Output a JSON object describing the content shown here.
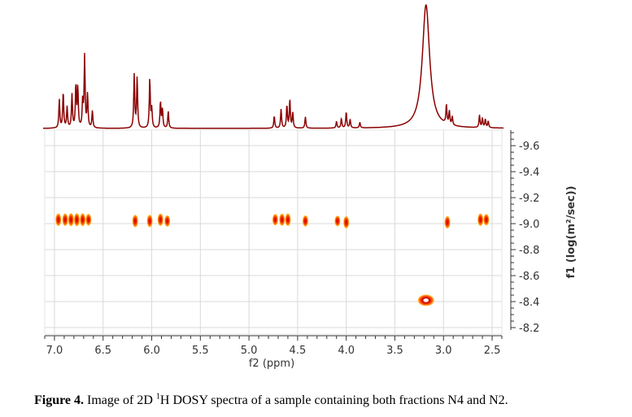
{
  "chart_data": {
    "type": "heatmap",
    "subtype": "2D DOSY NMR spectrum with 1D projection",
    "xlabel": "f2 (ppm)",
    "ylabel": "f1 (log(m²/sec))",
    "xlim": [
      7.1,
      2.4
    ],
    "ylim": [
      -8.15,
      -9.72
    ],
    "x_ticks": [
      "7.0",
      "6.5",
      "6.0",
      "5.5",
      "5.0",
      "4.5",
      "4.0",
      "3.5",
      "3.0",
      "2.5"
    ],
    "x_tick_values": [
      7.0,
      6.5,
      6.0,
      5.5,
      5.0,
      4.5,
      4.0,
      3.5,
      3.0,
      2.5
    ],
    "y_ticks": [
      "-9.6",
      "-9.4",
      "-9.2",
      "-9.0",
      "-8.8",
      "-8.6",
      "-8.4",
      "-8.2"
    ],
    "y_tick_values": [
      -9.6,
      -9.4,
      -9.2,
      -9.0,
      -8.8,
      -8.6,
      -8.4,
      -8.2
    ],
    "grid": true,
    "colors": {
      "projection": "#8b0000",
      "peak_outer": "#ffd24a",
      "peak_mid": "#ff6a00",
      "peak_core": "#cc0000",
      "peak_center": "#ffffff",
      "grid": "#d9d9d9"
    },
    "projection_peaks": [
      {
        "x": 6.95,
        "h": 0.3
      },
      {
        "x": 6.91,
        "h": 0.38
      },
      {
        "x": 6.87,
        "h": 0.22
      },
      {
        "x": 6.82,
        "h": 0.35
      },
      {
        "x": 6.78,
        "h": 0.45
      },
      {
        "x": 6.76,
        "h": 0.42
      },
      {
        "x": 6.71,
        "h": 0.28
      },
      {
        "x": 6.69,
        "h": 0.75
      },
      {
        "x": 6.66,
        "h": 0.35
      },
      {
        "x": 6.61,
        "h": 0.18
      },
      {
        "x": 6.18,
        "h": 0.56
      },
      {
        "x": 6.15,
        "h": 0.53
      },
      {
        "x": 6.02,
        "h": 0.52
      },
      {
        "x": 6.0,
        "h": 0.2
      },
      {
        "x": 5.91,
        "h": 0.28
      },
      {
        "x": 5.89,
        "h": 0.2
      },
      {
        "x": 5.83,
        "h": 0.18
      },
      {
        "x": 4.74,
        "h": 0.13
      },
      {
        "x": 4.67,
        "h": 0.2
      },
      {
        "x": 4.61,
        "h": 0.24
      },
      {
        "x": 4.58,
        "h": 0.3
      },
      {
        "x": 4.55,
        "h": 0.16
      },
      {
        "x": 4.42,
        "h": 0.12
      },
      {
        "x": 4.1,
        "h": 0.07
      },
      {
        "x": 4.05,
        "h": 0.1
      },
      {
        "x": 4.0,
        "h": 0.17
      },
      {
        "x": 3.96,
        "h": 0.09
      },
      {
        "x": 3.86,
        "h": 0.06
      },
      {
        "x": 3.18,
        "h": 1.3,
        "w": 0.045
      },
      {
        "x": 2.97,
        "h": 0.2
      },
      {
        "x": 2.94,
        "h": 0.14
      },
      {
        "x": 2.91,
        "h": 0.09
      },
      {
        "x": 2.63,
        "h": 0.13
      },
      {
        "x": 2.6,
        "h": 0.1
      },
      {
        "x": 2.57,
        "h": 0.09
      },
      {
        "x": 2.54,
        "h": 0.07
      }
    ],
    "dosy_peaks": [
      {
        "x": 6.96,
        "y": -9.03,
        "w": 0.03,
        "int": 0.9
      },
      {
        "x": 6.89,
        "y": -9.03,
        "w": 0.03,
        "int": 0.9
      },
      {
        "x": 6.83,
        "y": -9.03,
        "w": 0.03,
        "int": 1.0
      },
      {
        "x": 6.77,
        "y": -9.03,
        "w": 0.03,
        "int": 1.0
      },
      {
        "x": 6.71,
        "y": -9.03,
        "w": 0.03,
        "int": 1.0
      },
      {
        "x": 6.65,
        "y": -9.03,
        "w": 0.02,
        "int": 0.7
      },
      {
        "x": 6.17,
        "y": -9.02,
        "w": 0.03,
        "int": 0.85
      },
      {
        "x": 6.02,
        "y": -9.02,
        "w": 0.03,
        "int": 0.85
      },
      {
        "x": 5.91,
        "y": -9.03,
        "w": 0.03,
        "int": 0.85
      },
      {
        "x": 5.84,
        "y": -9.02,
        "w": 0.02,
        "int": 0.6
      },
      {
        "x": 4.73,
        "y": -9.03,
        "w": 0.02,
        "int": 0.6
      },
      {
        "x": 4.66,
        "y": -9.03,
        "w": 0.03,
        "int": 0.8
      },
      {
        "x": 4.6,
        "y": -9.03,
        "w": 0.03,
        "int": 0.9
      },
      {
        "x": 4.42,
        "y": -9.02,
        "w": 0.02,
        "int": 0.55
      },
      {
        "x": 4.09,
        "y": -9.02,
        "w": 0.02,
        "int": 0.4
      },
      {
        "x": 4.0,
        "y": -9.01,
        "w": 0.03,
        "int": 0.8
      },
      {
        "x": 2.96,
        "y": -9.01,
        "w": 0.03,
        "int": 0.85
      },
      {
        "x": 2.62,
        "y": -9.03,
        "w": 0.03,
        "int": 0.85
      },
      {
        "x": 2.56,
        "y": -9.03,
        "w": 0.02,
        "int": 0.6
      },
      {
        "x": 3.18,
        "y": -8.41,
        "w": 0.05,
        "int": 1.0,
        "ring": true
      }
    ]
  },
  "caption": {
    "label": "Figure 4.",
    "text_before": " Image of 2D ",
    "superscript": "1",
    "text_after": "H DOSY spectra of a sample containing both fractions N4 and N2."
  }
}
